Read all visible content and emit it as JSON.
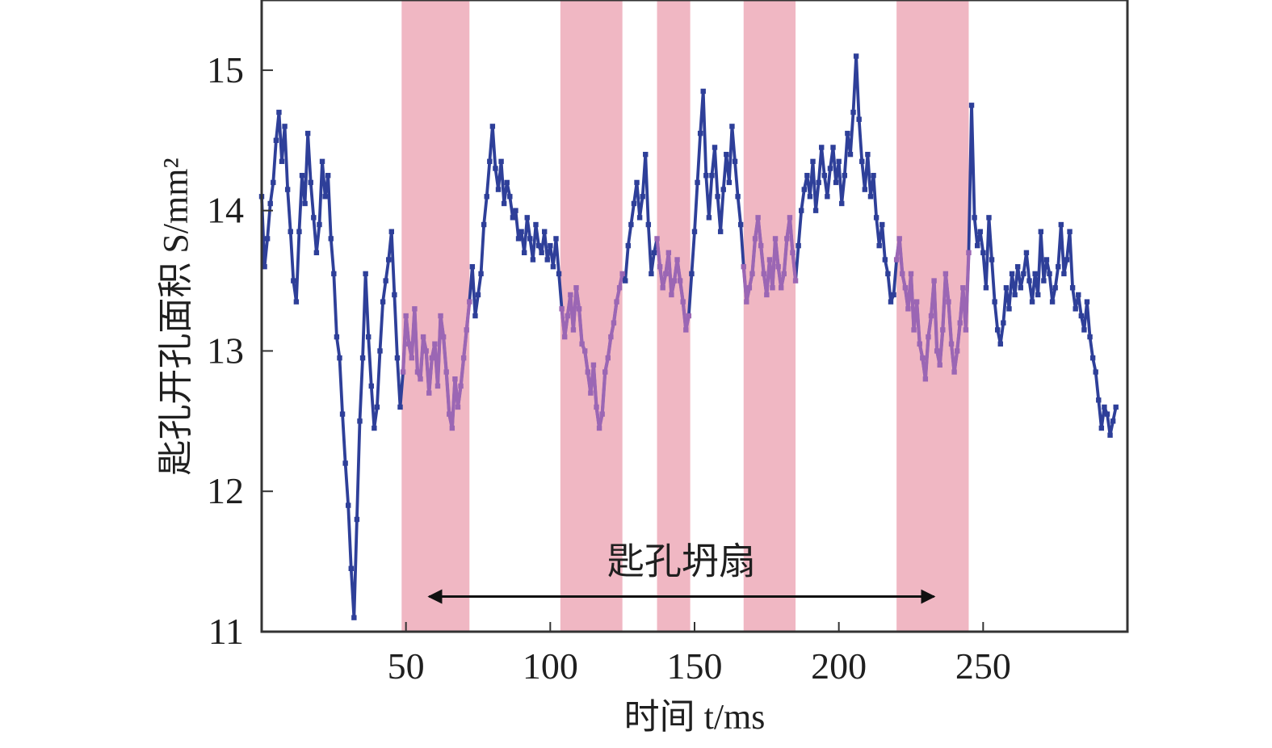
{
  "chart_data": {
    "type": "line",
    "xlabel": "时间 t/ms",
    "ylabel": "匙孔开孔面积 S/mm²",
    "xlim": [
      0,
      300
    ],
    "ylim": [
      11,
      15.5
    ],
    "xticks": [
      "50",
      "100",
      "150",
      "200",
      "250"
    ],
    "yticks": [
      "11",
      "12",
      "13",
      "14",
      "15"
    ],
    "grid": false,
    "line_color": "#2e3f99",
    "shade_color": "#f0b7c3",
    "highlight_color": "#9b66b4",
    "shaded_regions": [
      [
        48.5,
        72
      ],
      [
        103.5,
        125
      ],
      [
        137,
        148.5
      ],
      [
        167,
        185
      ],
      [
        220,
        245
      ]
    ],
    "annotation": {
      "text": "匙孔坍扇",
      "x_start": 58,
      "x_end": 233,
      "y": 11.25
    },
    "series": [
      {
        "points": [
          [
            0,
            14.1
          ],
          [
            1,
            13.6
          ],
          [
            2,
            13.8
          ],
          [
            3,
            14.05
          ],
          [
            4,
            14.2
          ],
          [
            5,
            14.5
          ],
          [
            6,
            14.7
          ],
          [
            7,
            14.35
          ],
          [
            8,
            14.6
          ],
          [
            9,
            14.15
          ],
          [
            10,
            13.85
          ],
          [
            11,
            13.5
          ],
          [
            12,
            13.35
          ],
          [
            13,
            13.85
          ],
          [
            14,
            14.25
          ],
          [
            15,
            14.05
          ],
          [
            16,
            14.55
          ],
          [
            17,
            14.2
          ],
          [
            18,
            13.95
          ],
          [
            19,
            13.7
          ],
          [
            20,
            13.9
          ],
          [
            21,
            14.35
          ],
          [
            22,
            14.1
          ],
          [
            23,
            14.25
          ],
          [
            24,
            13.8
          ],
          [
            25,
            13.55
          ],
          [
            26,
            13.1
          ],
          [
            27,
            12.95
          ],
          [
            28,
            12.55
          ],
          [
            29,
            12.2
          ],
          [
            30,
            11.9
          ],
          [
            31,
            11.45
          ],
          [
            32,
            11.1
          ],
          [
            33,
            11.8
          ],
          [
            34,
            12.5
          ],
          [
            35,
            12.95
          ],
          [
            36,
            13.55
          ],
          [
            37,
            13.1
          ],
          [
            38,
            12.75
          ],
          [
            39,
            12.45
          ],
          [
            40,
            12.6
          ],
          [
            41,
            13.0
          ],
          [
            42,
            13.35
          ],
          [
            43,
            13.5
          ],
          [
            44,
            13.65
          ],
          [
            45,
            13.85
          ],
          [
            46,
            13.4
          ],
          [
            47,
            12.95
          ],
          [
            48,
            12.6
          ],
          [
            49,
            12.85
          ],
          [
            50,
            13.25
          ],
          [
            51,
            13.05
          ],
          [
            52,
            12.95
          ],
          [
            53,
            13.3
          ],
          [
            54,
            12.85
          ],
          [
            55,
            12.8
          ],
          [
            56,
            13.1
          ],
          [
            57,
            13.0
          ],
          [
            58,
            12.7
          ],
          [
            59,
            12.95
          ],
          [
            60,
            13.05
          ],
          [
            61,
            12.75
          ],
          [
            62,
            13.25
          ],
          [
            63,
            13.1
          ],
          [
            64,
            12.85
          ],
          [
            65,
            12.55
          ],
          [
            66,
            12.45
          ],
          [
            67,
            12.8
          ],
          [
            68,
            12.6
          ],
          [
            69,
            12.75
          ],
          [
            70,
            12.95
          ],
          [
            71,
            13.15
          ],
          [
            72,
            13.35
          ],
          [
            73,
            13.6
          ],
          [
            74,
            13.25
          ],
          [
            75,
            13.4
          ],
          [
            76,
            13.55
          ],
          [
            77,
            13.9
          ],
          [
            78,
            14.1
          ],
          [
            79,
            14.35
          ],
          [
            80,
            14.6
          ],
          [
            81,
            14.3
          ],
          [
            82,
            14.15
          ],
          [
            83,
            14.35
          ],
          [
            84,
            14.05
          ],
          [
            85,
            14.2
          ],
          [
            86,
            14.1
          ],
          [
            87,
            13.95
          ],
          [
            88,
            14.0
          ],
          [
            89,
            13.8
          ],
          [
            90,
            13.85
          ],
          [
            91,
            13.7
          ],
          [
            92,
            13.95
          ],
          [
            93,
            13.8
          ],
          [
            94,
            13.65
          ],
          [
            95,
            13.9
          ],
          [
            96,
            13.75
          ],
          [
            97,
            13.7
          ],
          [
            98,
            13.85
          ],
          [
            99,
            13.65
          ],
          [
            100,
            13.75
          ],
          [
            101,
            13.6
          ],
          [
            102,
            13.8
          ],
          [
            103,
            13.55
          ],
          [
            104,
            13.3
          ],
          [
            105,
            13.1
          ],
          [
            106,
            13.25
          ],
          [
            107,
            13.4
          ],
          [
            108,
            13.15
          ],
          [
            109,
            13.45
          ],
          [
            110,
            13.3
          ],
          [
            111,
            13.05
          ],
          [
            112,
            13.0
          ],
          [
            113,
            12.85
          ],
          [
            114,
            12.7
          ],
          [
            115,
            12.9
          ],
          [
            116,
            12.6
          ],
          [
            117,
            12.45
          ],
          [
            118,
            12.55
          ],
          [
            119,
            12.85
          ],
          [
            120,
            12.95
          ],
          [
            121,
            13.1
          ],
          [
            122,
            13.2
          ],
          [
            123,
            13.35
          ],
          [
            124,
            13.45
          ],
          [
            125,
            13.55
          ],
          [
            126,
            13.5
          ],
          [
            127,
            13.75
          ],
          [
            128,
            13.9
          ],
          [
            129,
            14.05
          ],
          [
            130,
            14.2
          ],
          [
            131,
            13.95
          ],
          [
            132,
            14.1
          ],
          [
            133,
            14.4
          ],
          [
            134,
            13.9
          ],
          [
            135,
            13.55
          ],
          [
            136,
            13.7
          ],
          [
            137,
            13.8
          ],
          [
            138,
            13.6
          ],
          [
            139,
            13.45
          ],
          [
            140,
            13.55
          ],
          [
            141,
            13.7
          ],
          [
            142,
            13.4
          ],
          [
            143,
            13.5
          ],
          [
            144,
            13.65
          ],
          [
            145,
            13.5
          ],
          [
            146,
            13.35
          ],
          [
            147,
            13.15
          ],
          [
            148,
            13.25
          ],
          [
            149,
            13.55
          ],
          [
            150,
            13.85
          ],
          [
            151,
            14.2
          ],
          [
            152,
            14.55
          ],
          [
            153,
            14.85
          ],
          [
            154,
            14.25
          ],
          [
            155,
            13.95
          ],
          [
            156,
            14.25
          ],
          [
            157,
            14.45
          ],
          [
            158,
            14.1
          ],
          [
            159,
            13.85
          ],
          [
            160,
            14.15
          ],
          [
            161,
            14.4
          ],
          [
            162,
            14.2
          ],
          [
            163,
            14.6
          ],
          [
            164,
            14.35
          ],
          [
            165,
            14.1
          ],
          [
            166,
            13.9
          ],
          [
            167,
            13.6
          ],
          [
            168,
            13.35
          ],
          [
            169,
            13.45
          ],
          [
            170,
            13.55
          ],
          [
            171,
            13.8
          ],
          [
            172,
            13.95
          ],
          [
            173,
            13.75
          ],
          [
            174,
            13.55
          ],
          [
            175,
            13.4
          ],
          [
            176,
            13.65
          ],
          [
            177,
            13.45
          ],
          [
            178,
            13.8
          ],
          [
            179,
            13.6
          ],
          [
            180,
            13.45
          ],
          [
            181,
            13.55
          ],
          [
            182,
            13.8
          ],
          [
            183,
            13.95
          ],
          [
            184,
            13.7
          ],
          [
            185,
            13.5
          ],
          [
            186,
            13.75
          ],
          [
            187,
            14.0
          ],
          [
            188,
            14.15
          ],
          [
            189,
            14.25
          ],
          [
            190,
            14.1
          ],
          [
            191,
            14.35
          ],
          [
            192,
            14.0
          ],
          [
            193,
            14.2
          ],
          [
            194,
            14.45
          ],
          [
            195,
            14.25
          ],
          [
            196,
            14.1
          ],
          [
            197,
            14.3
          ],
          [
            198,
            14.45
          ],
          [
            199,
            14.2
          ],
          [
            200,
            14.35
          ],
          [
            201,
            14.05
          ],
          [
            202,
            14.25
          ],
          [
            203,
            14.55
          ],
          [
            204,
            14.4
          ],
          [
            205,
            14.7
          ],
          [
            206,
            15.1
          ],
          [
            207,
            14.65
          ],
          [
            208,
            14.35
          ],
          [
            209,
            14.15
          ],
          [
            210,
            14.4
          ],
          [
            211,
            14.1
          ],
          [
            212,
            14.25
          ],
          [
            213,
            13.95
          ],
          [
            214,
            13.75
          ],
          [
            215,
            13.9
          ],
          [
            216,
            13.65
          ],
          [
            217,
            13.55
          ],
          [
            218,
            13.35
          ],
          [
            219,
            13.4
          ],
          [
            220,
            13.65
          ],
          [
            221,
            13.8
          ],
          [
            222,
            13.55
          ],
          [
            223,
            13.45
          ],
          [
            224,
            13.3
          ],
          [
            225,
            13.55
          ],
          [
            226,
            13.15
          ],
          [
            227,
            13.35
          ],
          [
            228,
            13.05
          ],
          [
            229,
            12.95
          ],
          [
            230,
            12.8
          ],
          [
            231,
            13.1
          ],
          [
            232,
            13.25
          ],
          [
            233,
            13.5
          ],
          [
            234,
            13.0
          ],
          [
            235,
            12.9
          ],
          [
            236,
            13.15
          ],
          [
            237,
            13.55
          ],
          [
            238,
            13.35
          ],
          [
            239,
            13.05
          ],
          [
            240,
            12.85
          ],
          [
            241,
            13.0
          ],
          [
            242,
            13.2
          ],
          [
            243,
            13.45
          ],
          [
            244,
            13.15
          ],
          [
            245,
            13.7
          ],
          [
            246,
            14.75
          ],
          [
            247,
            13.95
          ],
          [
            248,
            13.75
          ],
          [
            249,
            13.85
          ],
          [
            250,
            13.7
          ],
          [
            251,
            13.45
          ],
          [
            252,
            13.95
          ],
          [
            253,
            13.65
          ],
          [
            254,
            13.35
          ],
          [
            255,
            13.15
          ],
          [
            256,
            13.05
          ],
          [
            257,
            13.2
          ],
          [
            258,
            13.45
          ],
          [
            259,
            13.3
          ],
          [
            260,
            13.55
          ],
          [
            261,
            13.4
          ],
          [
            262,
            13.6
          ],
          [
            263,
            13.45
          ],
          [
            264,
            13.55
          ],
          [
            265,
            13.7
          ],
          [
            266,
            13.5
          ],
          [
            267,
            13.35
          ],
          [
            268,
            13.55
          ],
          [
            269,
            13.4
          ],
          [
            270,
            13.85
          ],
          [
            271,
            13.5
          ],
          [
            272,
            13.65
          ],
          [
            273,
            13.55
          ],
          [
            274,
            13.35
          ],
          [
            275,
            13.45
          ],
          [
            276,
            13.6
          ],
          [
            277,
            13.9
          ],
          [
            278,
            13.55
          ],
          [
            279,
            13.65
          ],
          [
            280,
            13.85
          ],
          [
            281,
            13.45
          ],
          [
            282,
            13.3
          ],
          [
            283,
            13.4
          ],
          [
            284,
            13.25
          ],
          [
            285,
            13.15
          ],
          [
            286,
            13.35
          ],
          [
            287,
            13.1
          ],
          [
            288,
            12.95
          ],
          [
            289,
            12.85
          ],
          [
            290,
            12.65
          ],
          [
            291,
            12.45
          ],
          [
            292,
            12.6
          ],
          [
            293,
            12.55
          ],
          [
            294,
            12.4
          ],
          [
            295,
            12.5
          ],
          [
            296,
            12.6
          ]
        ]
      }
    ]
  }
}
